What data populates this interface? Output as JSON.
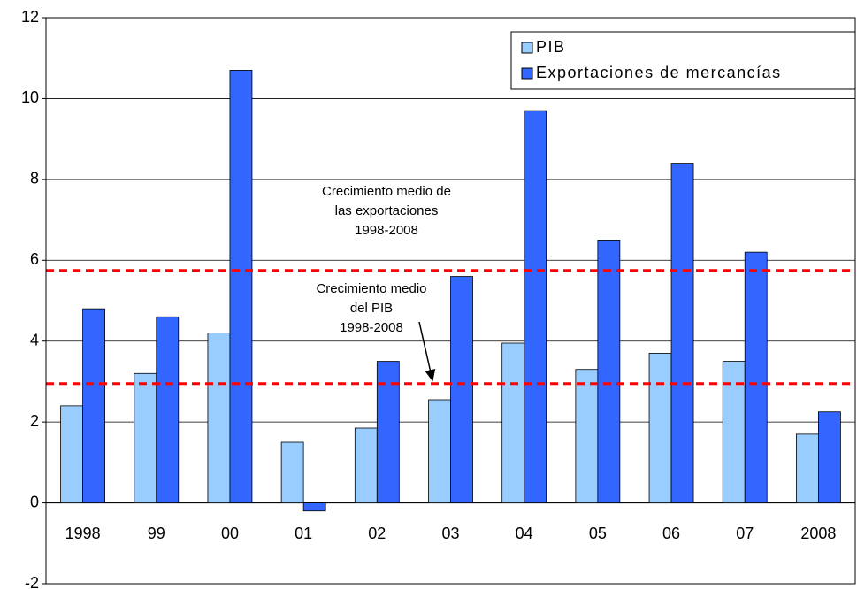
{
  "chart_data": {
    "type": "bar",
    "categories": [
      "1998",
      "99",
      "00",
      "01",
      "02",
      "03",
      "04",
      "05",
      "06",
      "07",
      "2008"
    ],
    "series": [
      {
        "name": "PIB",
        "color": "#99ccff",
        "values": [
          2.4,
          3.2,
          4.2,
          1.5,
          1.85,
          2.55,
          3.95,
          3.3,
          3.7,
          3.5,
          1.7
        ]
      },
      {
        "name": "Exportaciones de mercancías",
        "color": "#3366ff",
        "values": [
          4.8,
          4.6,
          10.7,
          -0.2,
          3.5,
          5.6,
          9.7,
          6.5,
          8.4,
          6.2,
          2.25
        ]
      }
    ],
    "ylim": [
      -2,
      12
    ],
    "yticks": [
      -2,
      0,
      2,
      4,
      6,
      8,
      10,
      12
    ],
    "grid": true,
    "legend": "top-right",
    "reference_lines": [
      {
        "value": 5.75,
        "color": "#ff0000",
        "annotation": [
          "Crecimiento medio de",
          "las exportaciones",
          "1998-2008"
        ]
      },
      {
        "value": 2.95,
        "color": "#ff0000",
        "annotation": [
          "Crecimiento medio",
          "del PIB",
          "1998-2008"
        ]
      }
    ]
  }
}
